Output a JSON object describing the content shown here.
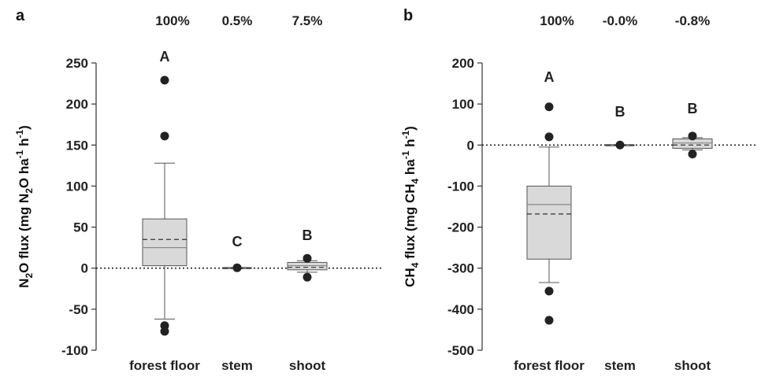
{
  "chart_data": [
    {
      "type": "box",
      "panel": "a",
      "ylabel": {
        "pre": "N",
        "sub1": "2",
        "mid": "O flux (mg N",
        "sub2": "2",
        "mid2": "O ha",
        "sup1": "-1",
        "mid3": " h",
        "sup2": "-1",
        "post": ")"
      },
      "ylim": [
        -100,
        250
      ],
      "yticks": [
        -100,
        -50,
        0,
        50,
        100,
        150,
        200,
        250
      ],
      "ytick_labels": [
        "-100",
        "-50",
        "0",
        "50",
        "100",
        "150",
        "200",
        "250"
      ],
      "reference_line": 0,
      "categories": [
        "forest floor",
        "stem",
        "shoot"
      ],
      "percentages": [
        "100%",
        "0.5%",
        "7.5%"
      ],
      "significance": [
        "A",
        "C",
        "B"
      ],
      "boxes": [
        {
          "q1": 3,
          "median": 25,
          "mean": 35,
          "q3": 60,
          "whisker_low": -62,
          "whisker_high": 128,
          "outliers": [
            229,
            161,
            -70,
            -77
          ]
        },
        {
          "q1": -0.5,
          "median": 0,
          "mean": 0,
          "q3": 0.8,
          "whisker_low": -0.5,
          "whisker_high": 0.8,
          "outliers": [
            0.5
          ]
        },
        {
          "q1": -2,
          "median": 3,
          "mean": 1,
          "q3": 7,
          "whisker_low": -5,
          "whisker_high": 9,
          "outliers": [
            12,
            -11
          ]
        }
      ]
    },
    {
      "type": "box",
      "panel": "b",
      "ylabel": {
        "pre": "CH",
        "sub1": "4",
        "mid": " flux (mg CH",
        "sub2": "4",
        "mid2": " ha",
        "sup1": "-1",
        "mid3": " h",
        "sup2": "-1",
        "post": ")"
      },
      "ylim": [
        -500,
        200
      ],
      "yticks": [
        -500,
        -400,
        -300,
        -200,
        -100,
        0,
        100,
        200
      ],
      "ytick_labels": [
        "-500",
        "-400",
        "-300",
        "-200",
        "-100",
        "0",
        "100",
        "200"
      ],
      "reference_line": 0,
      "categories": [
        "forest floor",
        "stem",
        "shoot"
      ],
      "percentages": [
        "100%",
        "-0.0%",
        "-0.8%"
      ],
      "significance": [
        "A",
        "B",
        "B"
      ],
      "boxes": [
        {
          "q1": -278,
          "median": -145,
          "mean": -168,
          "q3": -100,
          "whisker_low": -335,
          "whisker_high": -5,
          "outliers": [
            93,
            20,
            -356,
            -427
          ]
        },
        {
          "q1": -1,
          "median": 0,
          "mean": 0,
          "q3": 1,
          "whisker_low": -1,
          "whisker_high": 1,
          "outliers": [
            0
          ]
        },
        {
          "q1": -8,
          "median": 5,
          "mean": 0,
          "q3": 15,
          "whisker_low": -12,
          "whisker_high": 18,
          "outliers": [
            22,
            -22
          ]
        }
      ]
    }
  ],
  "colors": {
    "box_fill": "#d9d9d9",
    "box_stroke": "#555555",
    "outlier": "#222222",
    "axis": "#333333"
  }
}
